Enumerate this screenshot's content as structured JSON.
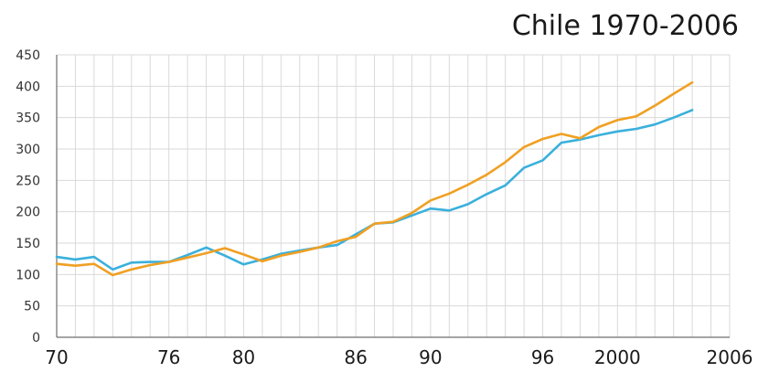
{
  "chart_data": {
    "type": "line",
    "title": "Chile 1970-2006",
    "xlabel": "",
    "ylabel": "",
    "xlim": [
      1970,
      2006
    ],
    "ylim": [
      0,
      450
    ],
    "y_ticks": [
      0,
      50,
      100,
      150,
      200,
      250,
      300,
      350,
      400,
      450
    ],
    "x_ticks": [
      {
        "value": 1970,
        "label": "70"
      },
      {
        "value": 1976,
        "label": "76"
      },
      {
        "value": 1980,
        "label": "80"
      },
      {
        "value": 1986,
        "label": "86"
      },
      {
        "value": 1990,
        "label": "90"
      },
      {
        "value": 1996,
        "label": "96"
      },
      {
        "value": 2000,
        "label": "2000"
      },
      {
        "value": 2006,
        "label": "2006"
      }
    ],
    "grid": true,
    "x": [
      1970,
      1971,
      1972,
      1973,
      1974,
      1975,
      1976,
      1977,
      1978,
      1979,
      1980,
      1981,
      1982,
      1983,
      1984,
      1985,
      1986,
      1987,
      1988,
      1989,
      1990,
      1991,
      1992,
      1993,
      1994,
      1995,
      1996,
      1997,
      1998,
      1999,
      2000,
      2001,
      2002,
      2003,
      2004
    ],
    "series": [
      {
        "color": "#3ab0dc",
        "values": [
          128,
          124,
          128,
          108,
          119,
          120,
          120,
          131,
          143,
          130,
          116,
          124,
          133,
          138,
          143,
          147,
          164,
          181,
          183,
          194,
          205,
          202,
          212,
          228,
          242,
          270,
          282,
          310,
          315,
          322,
          328,
          332,
          339,
          350,
          362
        ]
      },
      {
        "color": "#f0a023",
        "values": [
          117,
          114,
          117,
          99,
          108,
          115,
          120,
          127,
          134,
          142,
          132,
          121,
          130,
          136,
          143,
          153,
          160,
          181,
          184,
          198,
          218,
          229,
          243,
          259,
          279,
          303,
          316,
          324,
          317,
          335,
          346,
          352,
          369,
          388,
          406
        ]
      }
    ]
  }
}
